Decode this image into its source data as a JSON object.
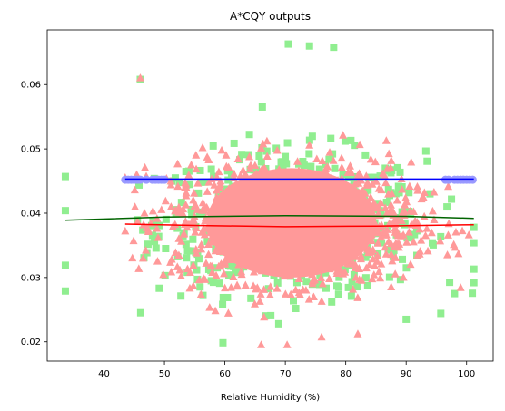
{
  "chart_data": {
    "type": "scatter",
    "title": "A*CQY outputs",
    "xlabel": "Relative Humidity (%)",
    "ylabel": "",
    "xlim": [
      30.6,
      104.4
    ],
    "ylim": [
      0.017,
      0.0685
    ],
    "xticks": [
      40,
      50,
      60,
      70,
      80,
      90,
      100
    ],
    "yticks": [
      0.02,
      0.03,
      0.04,
      0.05,
      0.06
    ],
    "grid": false,
    "legend": false,
    "cloud": {
      "x_center": 71,
      "x_spread": 11,
      "y_center": 0.0385,
      "y_spread": 0.0055,
      "squares_color": "#90ee90",
      "triangles_color": "#ff9999"
    },
    "notable_points": {
      "squares": [
        [
          33.6,
          0.0457
        ],
        [
          33.6,
          0.0404
        ],
        [
          33.6,
          0.0319
        ],
        [
          33.6,
          0.0279
        ],
        [
          46,
          0.0608
        ],
        [
          70.5,
          0.0663
        ],
        [
          74,
          0.066
        ],
        [
          78,
          0.0658
        ],
        [
          101.2,
          0.0378
        ],
        [
          101.2,
          0.0354
        ],
        [
          101.2,
          0.0313
        ],
        [
          101.2,
          0.0292
        ],
        [
          98,
          0.0275
        ],
        [
          90,
          0.0235
        ]
      ],
      "triangles": [
        [
          46,
          0.061
        ],
        [
          43.5,
          0.0455
        ],
        [
          43.5,
          0.0372
        ],
        [
          70.3,
          0.0195
        ],
        [
          66,
          0.0195
        ],
        [
          76,
          0.0207
        ],
        [
          82,
          0.0212
        ]
      ]
    },
    "series": [
      {
        "color": "#0000ff",
        "marker": "circle",
        "marker_color": "#9999ff",
        "x": [
          43.5,
          44,
          44.5,
          45,
          45.5,
          46,
          47,
          48,
          48.5,
          49,
          49.5,
          50,
          96.5,
          97,
          98,
          98.5,
          99,
          99.5,
          100,
          100.5,
          101
        ],
        "y": [
          0.0452,
          0.0452,
          0.0452,
          0.0452,
          0.0452,
          0.0452,
          0.0452,
          0.0452,
          0.0452,
          0.0452,
          0.0452,
          0.0452,
          0.0452,
          0.0452,
          0.0452,
          0.0452,
          0.0452,
          0.0452,
          0.0452,
          0.0452,
          0.0452
        ],
        "line_x": [
          43.5,
          101.2
        ],
        "line_y": [
          0.0453,
          0.0453
        ]
      },
      {
        "color": "#006400",
        "line_x": [
          33.6,
          50,
          70,
          90,
          101.2
        ],
        "line_y": [
          0.0389,
          0.0394,
          0.0396,
          0.0395,
          0.0392
        ]
      },
      {
        "color": "#ff0000",
        "line_x": [
          43.5,
          55,
          70,
          85,
          101.2
        ],
        "line_y": [
          0.0383,
          0.0381,
          0.0379,
          0.038,
          0.0382
        ]
      }
    ]
  }
}
